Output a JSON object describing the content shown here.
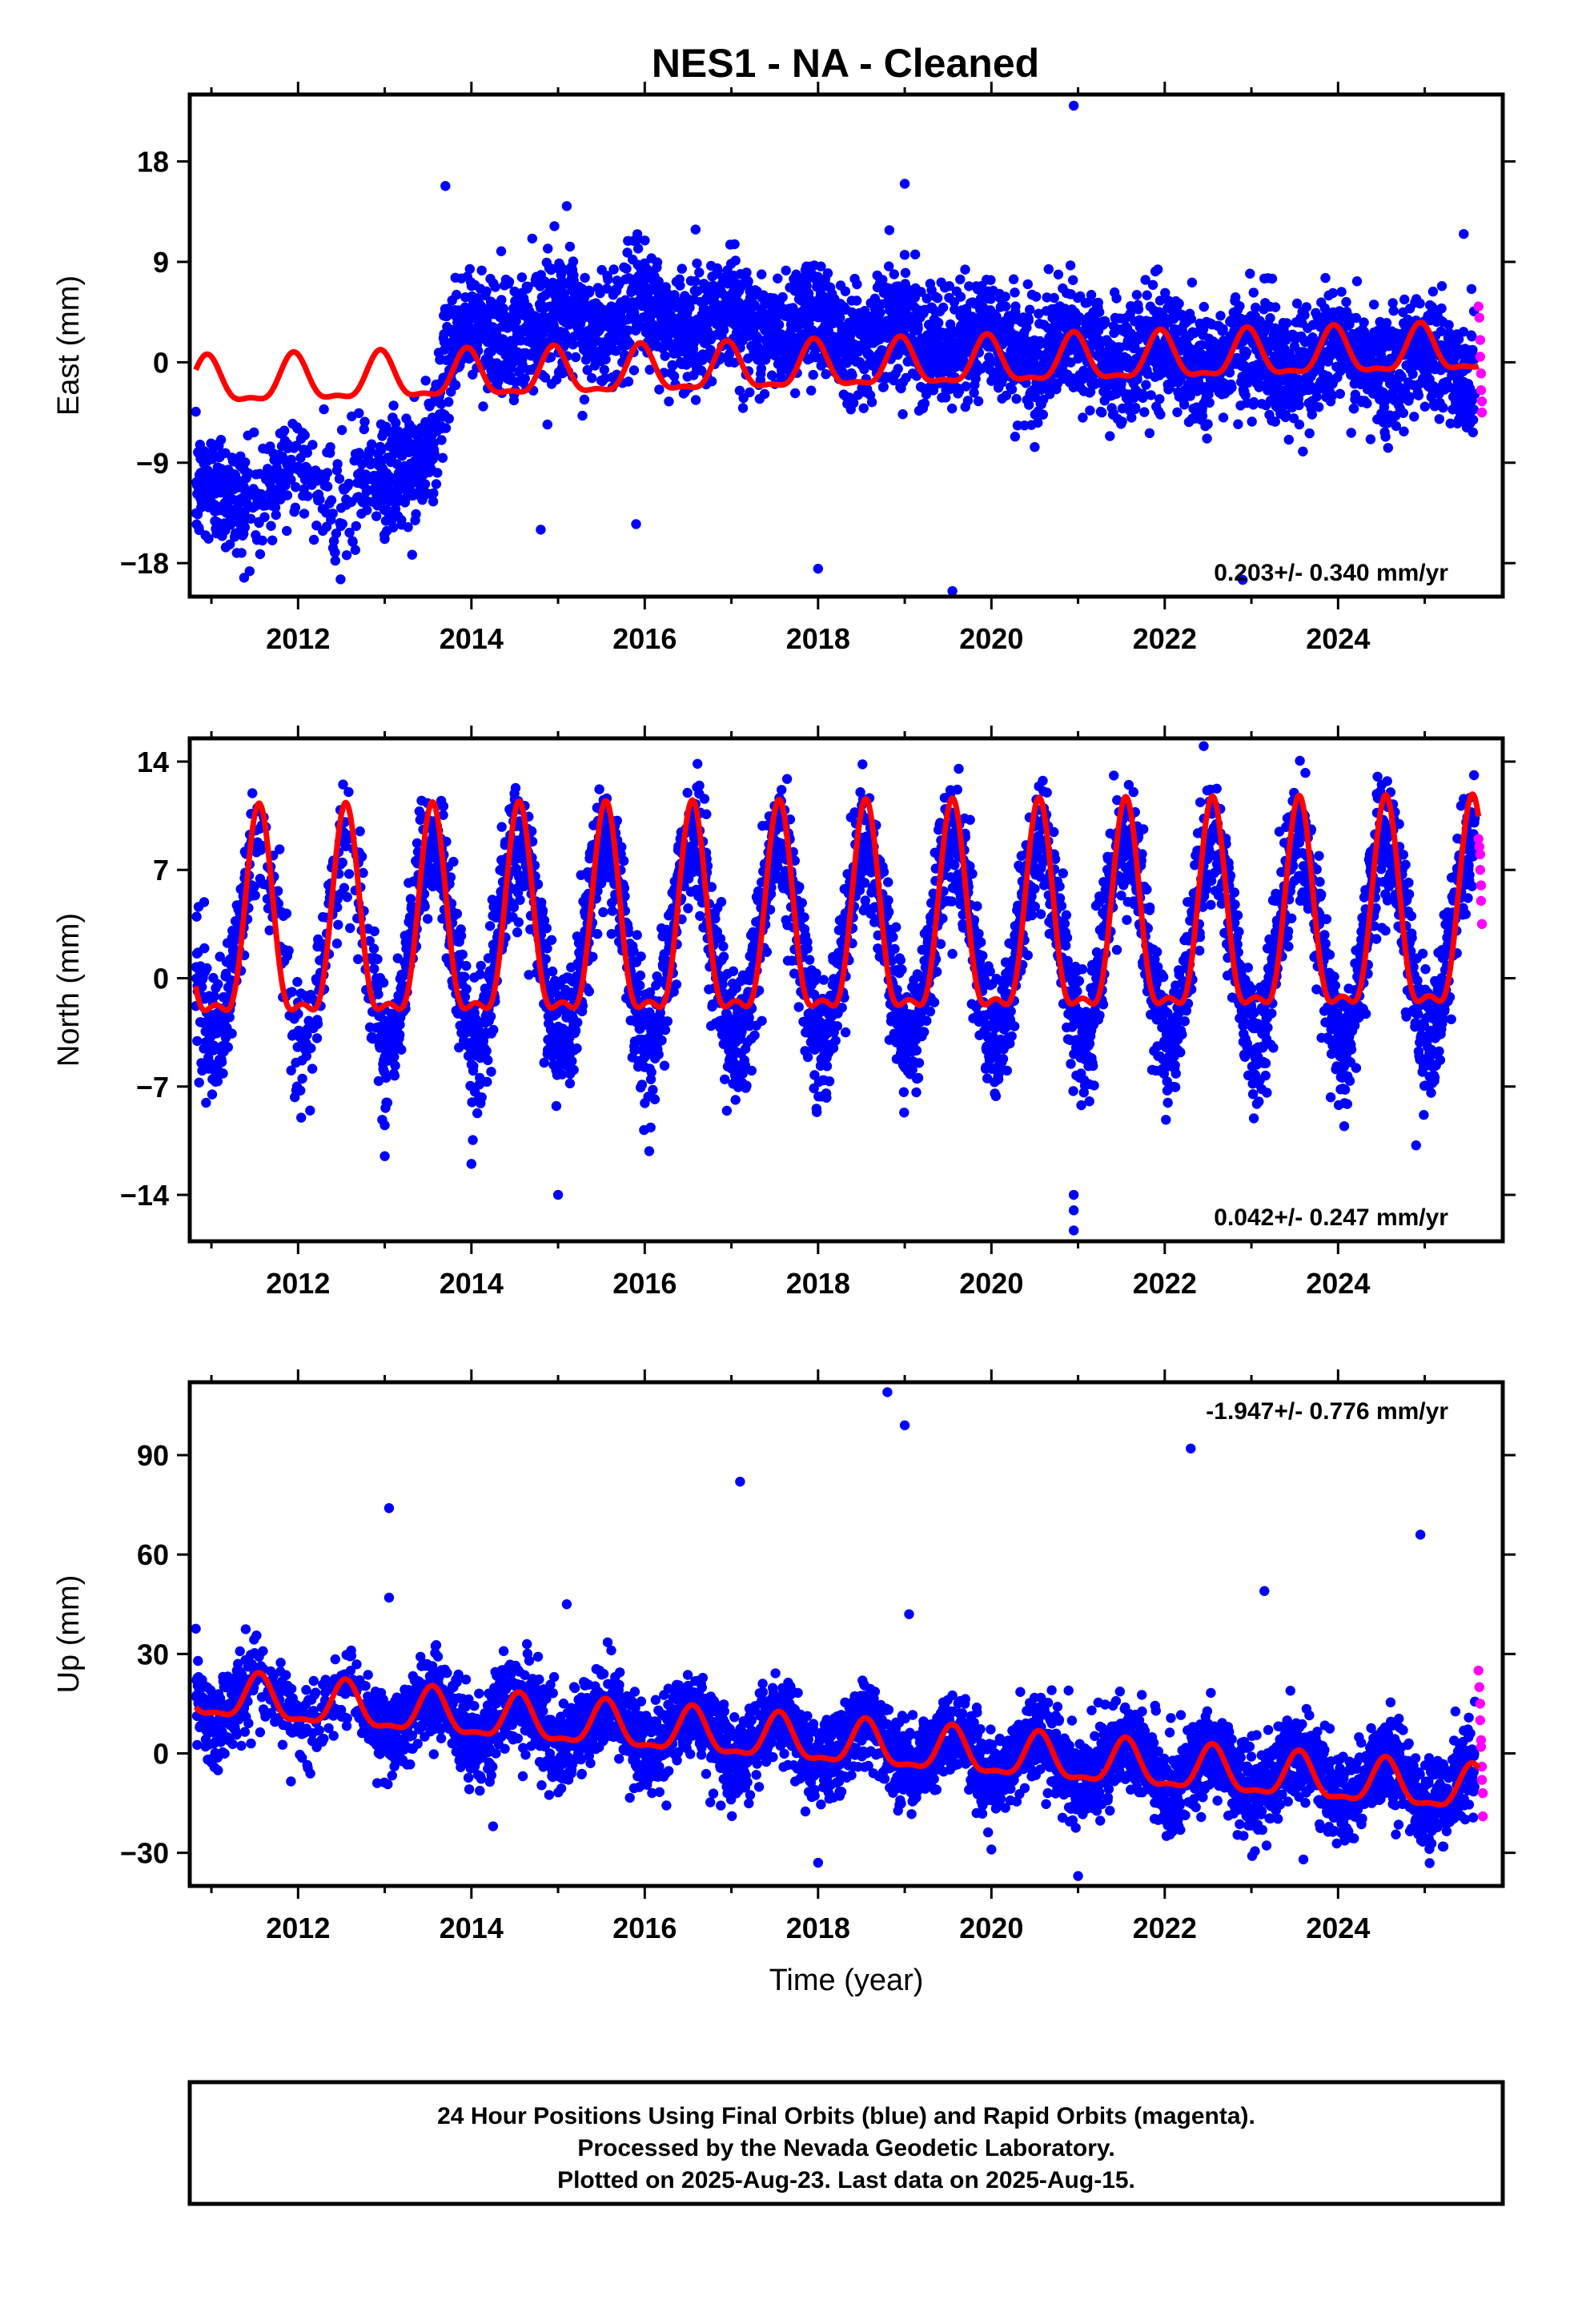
{
  "title": "NES1  - NA - Cleaned",
  "colors": {
    "final_orbits": "#0000ff",
    "rapid_orbits": "#ff00ff",
    "model": "#ff0000",
    "axes": "#000000",
    "background": "#ffffff"
  },
  "chart_data": [
    {
      "type": "scatter",
      "name": "east",
      "ylabel": "East (mm)",
      "xlabel": "",
      "xlim": [
        2010.75,
        2025.9
      ],
      "ylim": [
        -21,
        24
      ],
      "xticks": [
        2012,
        2014,
        2016,
        2018,
        2020,
        2022,
        2024
      ],
      "yticks": [
        18,
        9,
        0,
        -9,
        -18
      ],
      "ytick_labels": [
        "18",
        "9",
        "0",
        "-9",
        "-18"
      ],
      "rate_text": "0.203+/- 0.340 mm/yr",
      "rate_position": "bottom-right",
      "model": {
        "base_at_start": -2,
        "slope_per_yr": 0.203,
        "seasonal_amplitude": 2.0,
        "phase_peak_yr": 0.95
      },
      "trend_segments": [
        [
          2010.8,
          -12.5
        ],
        [
          2012.0,
          -10.5
        ],
        [
          2013.0,
          -11.5
        ],
        [
          2013.5,
          -7.5
        ],
        [
          2013.75,
          1
        ],
        [
          2014.2,
          3
        ],
        [
          2016.0,
          4
        ],
        [
          2018.5,
          3
        ],
        [
          2020.0,
          1.5
        ],
        [
          2022.0,
          0.5
        ],
        [
          2025.6,
          0
        ]
      ],
      "scatter_sigma": 2.6,
      "outliers": [
        [
          2020.95,
          23
        ],
        [
          2013.7,
          15.8
        ],
        [
          2015.1,
          14
        ],
        [
          2019.0,
          16
        ],
        [
          2018.0,
          -18.5
        ],
        [
          2019.55,
          -20.5
        ],
        [
          2022.9,
          -19.5
        ],
        [
          2015.9,
          -14.5
        ],
        [
          2025.45,
          11.5
        ],
        [
          2014.8,
          -15
        ]
      ],
      "rapid_points": [
        [
          2025.62,
          5
        ],
        [
          2025.63,
          4
        ],
        [
          2025.64,
          2
        ],
        [
          2025.64,
          0.5
        ],
        [
          2025.65,
          -1
        ],
        [
          2025.65,
          -2.5
        ],
        [
          2025.66,
          -3.5
        ],
        [
          2025.66,
          -4.5
        ]
      ]
    },
    {
      "type": "scatter",
      "name": "north",
      "ylabel": "North (mm)",
      "xlabel": "",
      "xlim": [
        2010.75,
        2025.9
      ],
      "ylim": [
        -17,
        15.5
      ],
      "xticks": [
        2012,
        2014,
        2016,
        2018,
        2020,
        2022,
        2024
      ],
      "yticks": [
        14,
        7,
        0,
        -7,
        -14
      ],
      "ytick_labels": [
        "14",
        "7",
        "0",
        "-7",
        "-14"
      ],
      "rate_text": "0.042+/- 0.247 mm/yr",
      "rate_position": "bottom-right",
      "model": {
        "base_at_start": 2.5,
        "slope_per_yr": 0.042,
        "seasonal_amplitude": 6.5,
        "phase_peak_yr": 0.55
      },
      "trend_segments": [
        [
          2010.8,
          2
        ],
        [
          2025.6,
          2.5
        ]
      ],
      "scatter_sigma": 2.0,
      "outliers": [
        [
          2020.95,
          -14
        ],
        [
          2020.95,
          -15
        ],
        [
          2020.95,
          -16.3
        ],
        [
          2013.0,
          -9.5
        ],
        [
          2013.0,
          -11.5
        ],
        [
          2014.0,
          -12
        ],
        [
          2015.0,
          -14
        ],
        [
          2024.9,
          -10.8
        ],
        [
          2022.45,
          15
        ]
      ],
      "rapid_points": [
        [
          2025.62,
          9
        ],
        [
          2025.63,
          8.5
        ],
        [
          2025.64,
          8
        ],
        [
          2025.64,
          7
        ],
        [
          2025.65,
          6
        ],
        [
          2025.65,
          5
        ],
        [
          2025.66,
          3.5
        ]
      ]
    },
    {
      "type": "scatter",
      "name": "up",
      "ylabel": "Up (mm)",
      "xlabel": "Time (year)",
      "xlim": [
        2010.75,
        2025.9
      ],
      "ylim": [
        -40,
        112
      ],
      "xticks": [
        2012,
        2014,
        2016,
        2018,
        2020,
        2022,
        2024
      ],
      "yticks": [
        90,
        60,
        30,
        0,
        -30
      ],
      "ytick_labels": [
        "90",
        "60",
        "30",
        "0",
        "-30"
      ],
      "rate_text": "-1.947+/- 0.776 mm/yr",
      "rate_position": "top-right",
      "model": {
        "base_at_start": 17,
        "slope_per_yr": -1.947,
        "seasonal_amplitude": 6.5,
        "phase_peak_yr": 0.55
      },
      "trend_segments": [
        [
          2010.8,
          17
        ],
        [
          2025.6,
          -11
        ]
      ],
      "scatter_sigma": 6.5,
      "outliers": [
        [
          2013.05,
          74
        ],
        [
          2017.1,
          82
        ],
        [
          2018.8,
          109
        ],
        [
          2019.0,
          99
        ],
        [
          2019.05,
          42
        ],
        [
          2022.3,
          92
        ],
        [
          2023.15,
          49
        ],
        [
          2024.95,
          66
        ],
        [
          2013.05,
          47
        ],
        [
          2015.1,
          45
        ],
        [
          2021.0,
          -37
        ],
        [
          2020.0,
          -29
        ],
        [
          2018.0,
          -33
        ],
        [
          2014.25,
          -22
        ],
        [
          2023.6,
          -32
        ]
      ],
      "rapid_points": [
        [
          2025.62,
          25
        ],
        [
          2025.63,
          20
        ],
        [
          2025.64,
          15
        ],
        [
          2025.64,
          10
        ],
        [
          2025.65,
          4
        ],
        [
          2025.65,
          2
        ],
        [
          2025.66,
          -4
        ],
        [
          2025.66,
          -8
        ],
        [
          2025.67,
          -12
        ],
        [
          2025.67,
          -19
        ]
      ]
    }
  ],
  "footer": {
    "line1": "24 Hour Positions Using Final Orbits (blue) and Rapid Orbits (magenta).",
    "line2": "Processed by the Nevada Geodetic Laboratory.",
    "line3": "Plotted on 2025-Aug-23. Last data on 2025-Aug-15."
  }
}
